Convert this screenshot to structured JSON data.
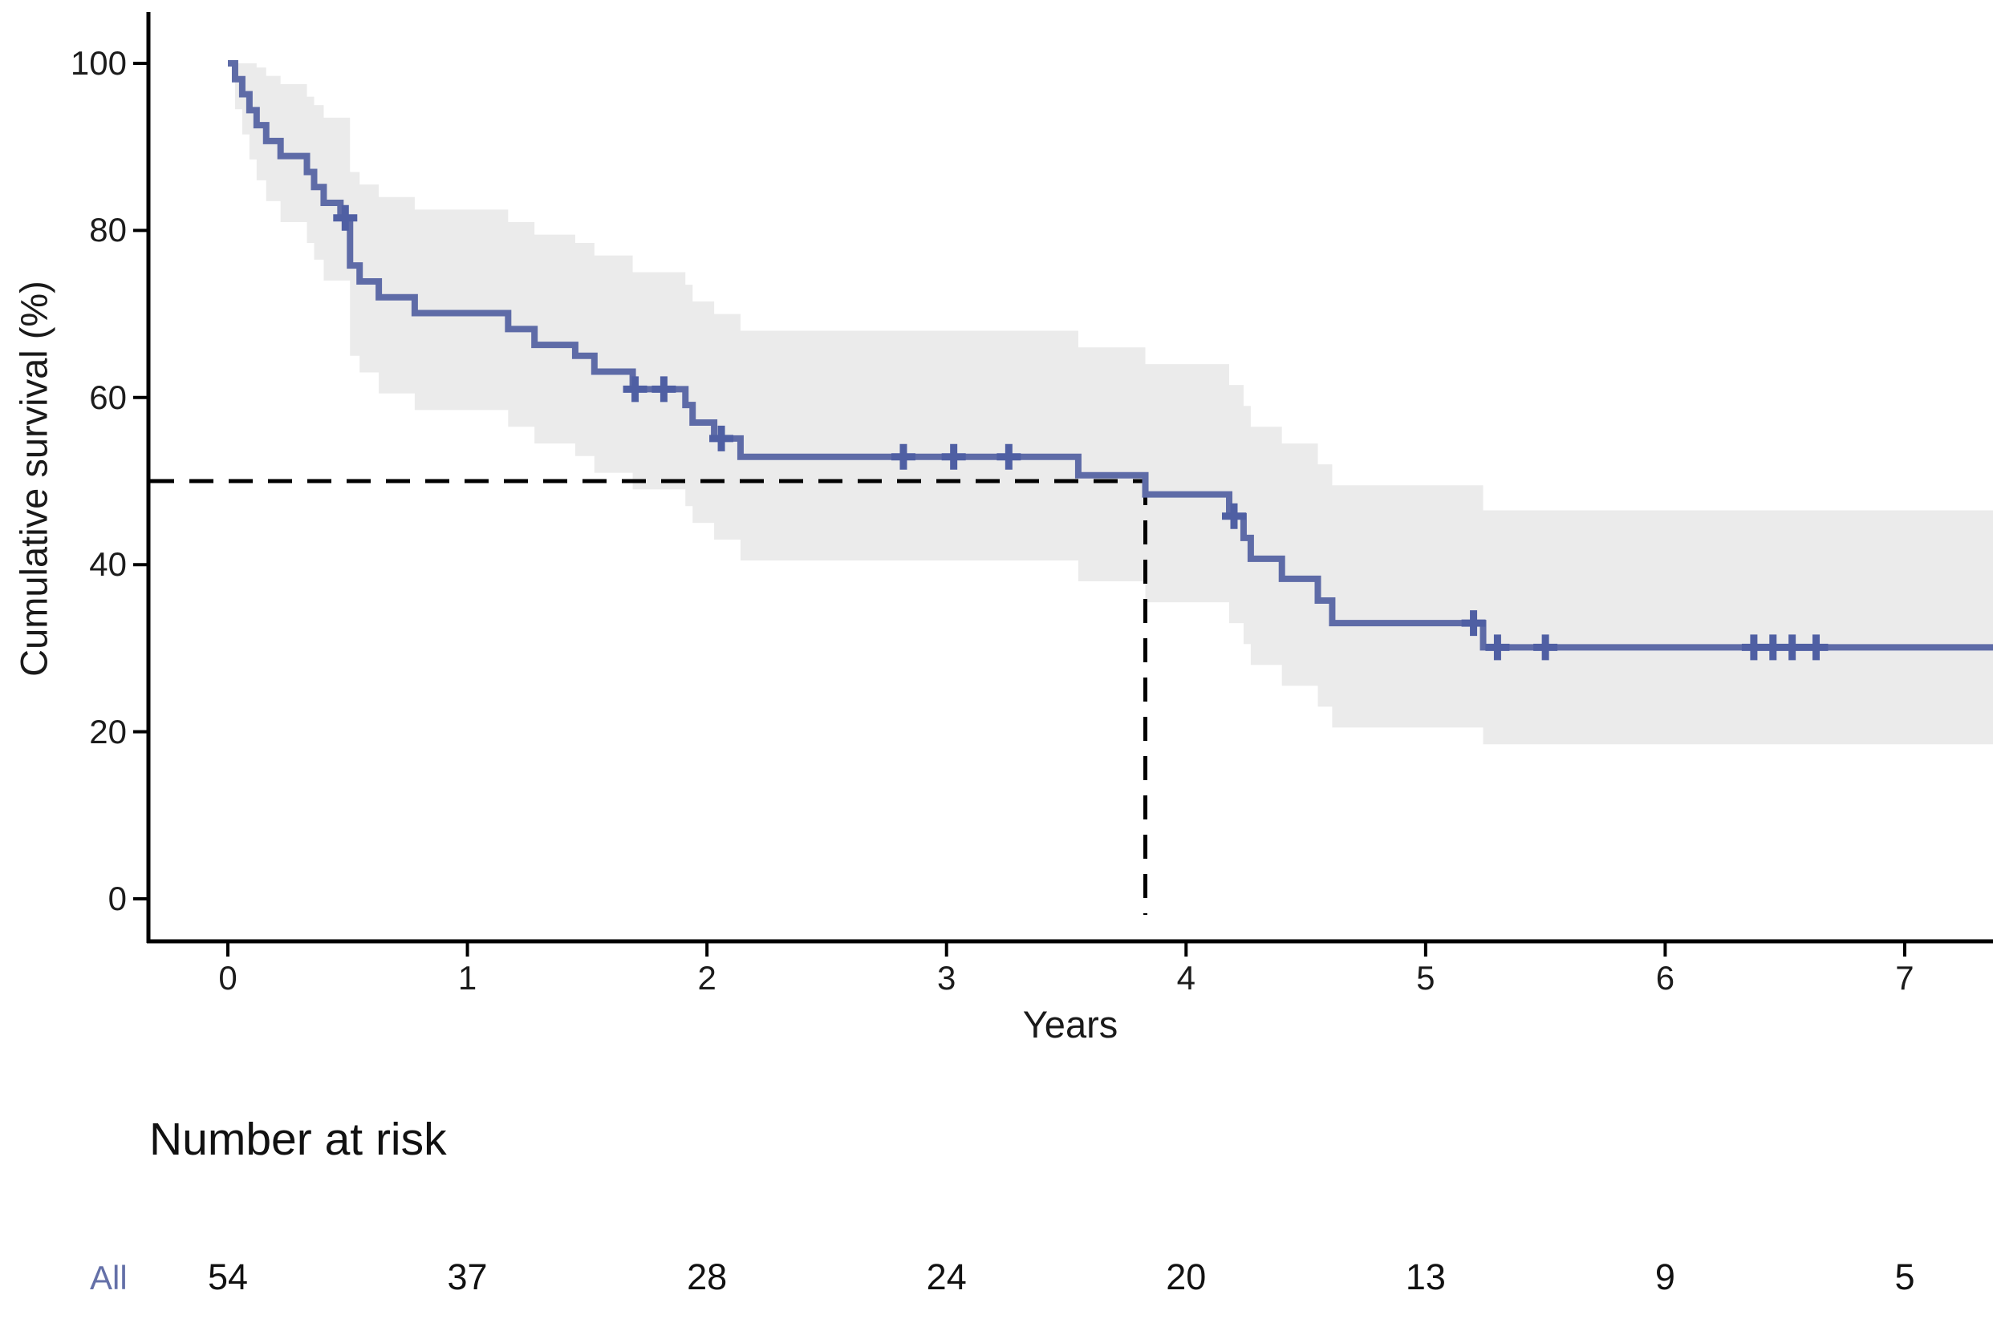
{
  "chart_data": {
    "type": "line",
    "subtype": "kaplan-meier-step",
    "title": "",
    "xlabel": "Years",
    "ylabel": "Cumulative survival (%)",
    "xlim": [
      -0.33,
      7.37
    ],
    "ylim": [
      0,
      100
    ],
    "xticks": [
      0,
      1,
      2,
      3,
      4,
      5,
      6,
      7
    ],
    "yticks": [
      0,
      20,
      40,
      60,
      80,
      100
    ],
    "grid": false,
    "legend": "none",
    "colors": {
      "curve": "#5e6ba7",
      "censor": "#4f5fa3",
      "band": "#ebebeb",
      "axis": "#000000",
      "median_dash": "#000000",
      "text": "#1a1a1a",
      "group_label": "#6470a8"
    },
    "series": [
      {
        "name": "All",
        "steps": [
          [
            0.0,
            100.0
          ],
          [
            0.03,
            98.1
          ],
          [
            0.06,
            96.3
          ],
          [
            0.09,
            94.4
          ],
          [
            0.12,
            92.6
          ],
          [
            0.16,
            90.7
          ],
          [
            0.22,
            88.9
          ],
          [
            0.33,
            87.0
          ],
          [
            0.36,
            85.2
          ],
          [
            0.4,
            83.3
          ],
          [
            0.47,
            81.5
          ],
          [
            0.51,
            75.8
          ],
          [
            0.55,
            73.9
          ],
          [
            0.63,
            72.0
          ],
          [
            0.78,
            70.1
          ],
          [
            1.17,
            68.2
          ],
          [
            1.28,
            66.3
          ],
          [
            1.45,
            65.0
          ],
          [
            1.53,
            63.1
          ],
          [
            1.69,
            61.0
          ],
          [
            1.91,
            59.1
          ],
          [
            1.94,
            57.0
          ],
          [
            2.03,
            55.1
          ],
          [
            2.14,
            52.9
          ],
          [
            3.55,
            50.7
          ],
          [
            3.83,
            48.4
          ],
          [
            4.18,
            45.8
          ],
          [
            4.24,
            43.2
          ],
          [
            4.27,
            40.7
          ],
          [
            4.4,
            38.3
          ],
          [
            4.55,
            35.7
          ],
          [
            4.61,
            33.0
          ],
          [
            5.24,
            30.1
          ]
        ],
        "censors": [
          [
            0.49,
            81.5
          ],
          [
            1.7,
            61.0
          ],
          [
            1.82,
            61.0
          ],
          [
            2.06,
            55.1
          ],
          [
            2.82,
            52.9
          ],
          [
            3.03,
            52.9
          ],
          [
            3.26,
            52.9
          ],
          [
            4.2,
            45.8
          ],
          [
            5.2,
            33.0
          ],
          [
            5.3,
            30.1
          ],
          [
            5.5,
            30.1
          ],
          [
            6.37,
            30.1
          ],
          [
            6.45,
            30.1
          ],
          [
            6.53,
            30.1
          ],
          [
            6.63,
            30.1
          ]
        ],
        "ci_steps": [
          [
            0.0,
            100.0,
            100.0
          ],
          [
            0.03,
            94.5,
            100.0
          ],
          [
            0.06,
            91.5,
            100.0
          ],
          [
            0.09,
            88.5,
            100.0
          ],
          [
            0.12,
            86.0,
            99.5
          ],
          [
            0.16,
            83.5,
            98.5
          ],
          [
            0.22,
            81.0,
            97.5
          ],
          [
            0.33,
            78.5,
            96.0
          ],
          [
            0.36,
            76.5,
            95.0
          ],
          [
            0.4,
            74.0,
            93.5
          ],
          [
            0.51,
            65.0,
            87.0
          ],
          [
            0.55,
            63.0,
            85.5
          ],
          [
            0.63,
            60.5,
            84.0
          ],
          [
            0.78,
            58.5,
            82.5
          ],
          [
            1.17,
            56.5,
            81.0
          ],
          [
            1.28,
            54.5,
            79.5
          ],
          [
            1.45,
            53.0,
            78.5
          ],
          [
            1.53,
            51.0,
            77.0
          ],
          [
            1.69,
            49.0,
            75.0
          ],
          [
            1.91,
            47.0,
            73.5
          ],
          [
            1.94,
            45.0,
            71.5
          ],
          [
            2.03,
            43.0,
            70.0
          ],
          [
            2.14,
            40.5,
            68.0
          ],
          [
            3.55,
            38.0,
            66.0
          ],
          [
            3.83,
            35.5,
            64.0
          ],
          [
            4.18,
            33.0,
            61.5
          ],
          [
            4.24,
            30.5,
            59.0
          ],
          [
            4.27,
            28.0,
            56.5
          ],
          [
            4.4,
            25.5,
            54.5
          ],
          [
            4.55,
            23.0,
            52.0
          ],
          [
            4.61,
            20.5,
            49.5
          ],
          [
            5.24,
            18.5,
            46.5
          ]
        ]
      }
    ],
    "median": {
      "time_years": 3.83,
      "survival_pct": 50
    },
    "risk_table": {
      "title": "Number at risk",
      "group": "All",
      "times": [
        0,
        1,
        2,
        3,
        4,
        5,
        6,
        7
      ],
      "counts": [
        54,
        37,
        28,
        24,
        20,
        13,
        9,
        5
      ]
    }
  }
}
